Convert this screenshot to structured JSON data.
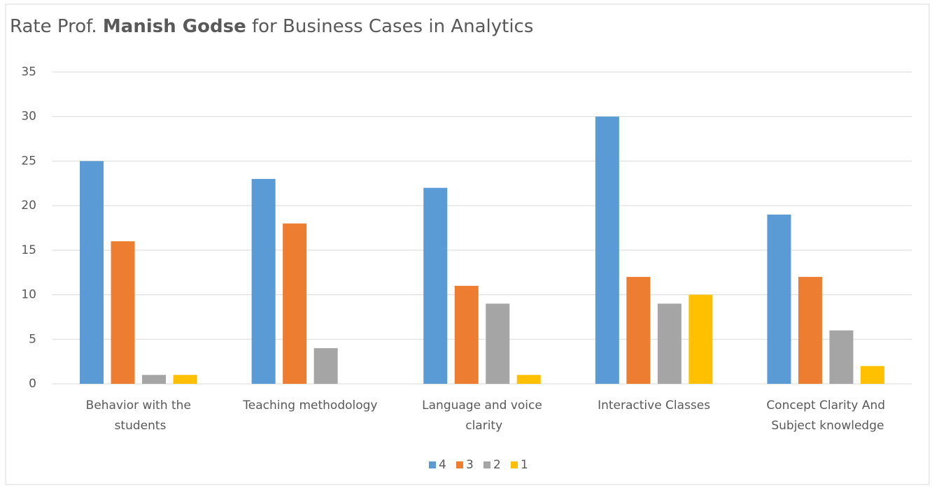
{
  "chart_data": {
    "type": "bar",
    "title": [
      "Rate Prof. ",
      "Manish Godse",
      " for Business Cases in Analytics"
    ],
    "categories": [
      "Behavior with the students",
      "Teaching methodology",
      "Language and voice clarity",
      "Interactive Classes",
      "Concept Clarity And Subject knowledge"
    ],
    "series": [
      {
        "name": "4",
        "color": "#5b9bd5",
        "values": [
          25,
          23,
          22,
          30,
          19
        ]
      },
      {
        "name": "3",
        "color": "#ed7d31",
        "values": [
          16,
          18,
          11,
          12,
          12
        ]
      },
      {
        "name": "2",
        "color": "#a5a5a5",
        "values": [
          1,
          4,
          9,
          9,
          6
        ]
      },
      {
        "name": "1",
        "color": "#ffc000",
        "values": [
          1,
          0,
          1,
          10,
          2
        ]
      }
    ],
    "ylim": [
      0,
      35
    ],
    "yticks": [
      0,
      5,
      10,
      15,
      20,
      25,
      30,
      35
    ],
    "grid": true,
    "legend": "bottom"
  }
}
